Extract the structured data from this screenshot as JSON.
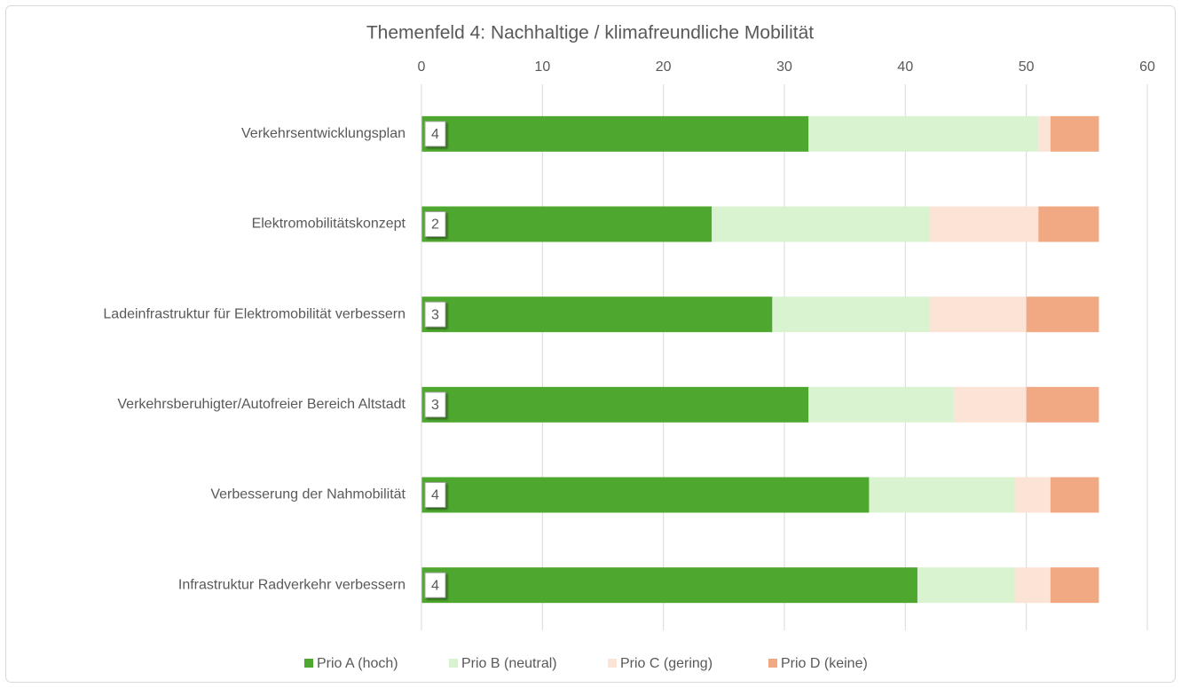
{
  "chart_data": {
    "type": "stacked_barh",
    "title": "Themenfeld 4: Nachhaltige / klimafreundliche Mobilität",
    "categories": [
      "Verkehrsentwicklungsplan",
      "Elektromobilitätskonzept",
      "Ladeinfrastruktur für Elektromobilität verbessern",
      "Verkehrsberuhigter/Autofreier Bereich Altstadt",
      "Verbesserung der Nahmobilität",
      "Infrastruktur Radverkehr verbessern"
    ],
    "series": [
      {
        "name": "Prio A (hoch)",
        "color": "#4ea72e",
        "values": [
          32,
          24,
          29,
          32,
          37,
          41
        ]
      },
      {
        "name": "Prio B (neutral)",
        "color": "#d9f2d0",
        "values": [
          19,
          18,
          13,
          12,
          12,
          8
        ]
      },
      {
        "name": "Prio C (gering)",
        "color": "#fbe3d6",
        "values": [
          1,
          9,
          8,
          6,
          3,
          3
        ]
      },
      {
        "name": "Prio D (keine)",
        "color": "#f1a983",
        "values": [
          4,
          5,
          6,
          6,
          4,
          4
        ]
      }
    ],
    "annotations": [
      4,
      2,
      3,
      3,
      4,
      4
    ],
    "xlim": [
      0,
      60
    ],
    "xticks": [
      0,
      10,
      20,
      30,
      40,
      50,
      60
    ],
    "grid": true,
    "legend": "bottom"
  }
}
